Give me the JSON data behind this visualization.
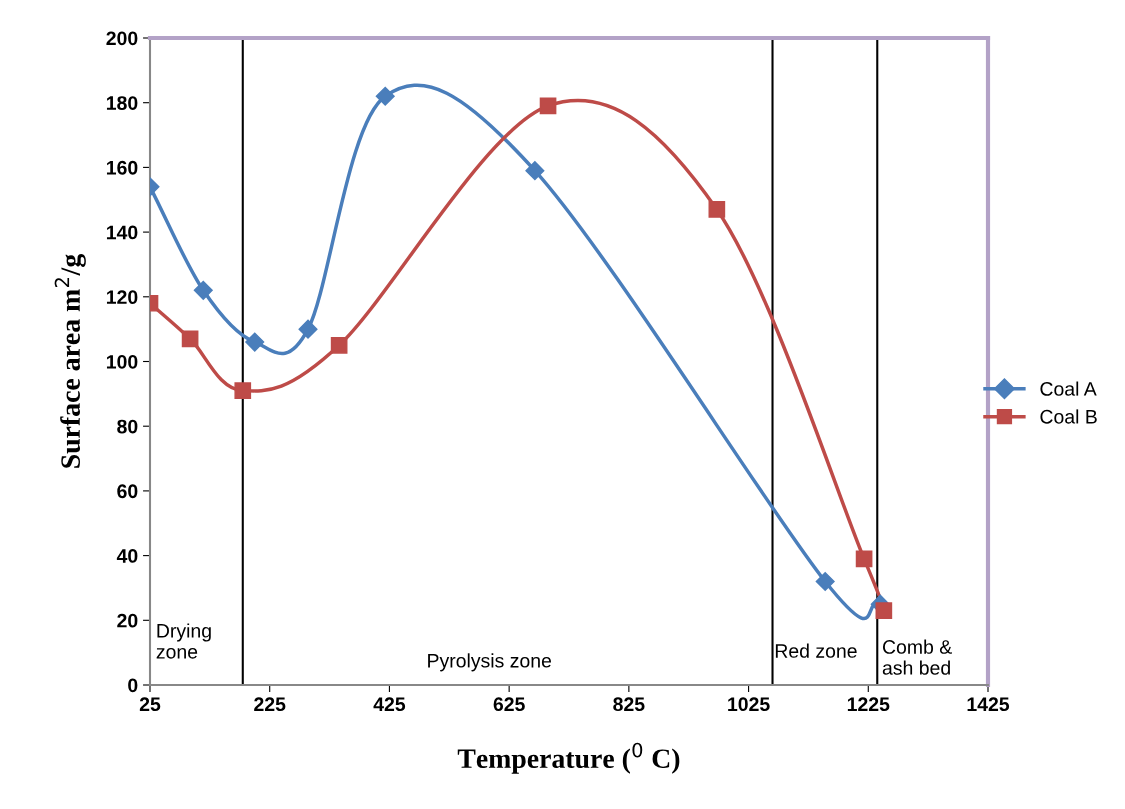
{
  "chart_data": {
    "type": "line",
    "xlabel": "Temperature ($^{0}$ C)",
    "ylabel": "Surface area m$^{2}$/g",
    "xlim": [
      25,
      1425
    ],
    "xticks": [
      25,
      225,
      425,
      625,
      825,
      1025,
      1225,
      1425
    ],
    "ylim": [
      0,
      200
    ],
    "yticks": [
      0,
      20,
      40,
      60,
      80,
      100,
      120,
      140,
      160,
      180,
      200
    ],
    "grid": false,
    "legend": "right",
    "line_style": "solid",
    "series": [
      {
        "name": "Coal A",
        "color": "#4a7ebb",
        "marker": "diamond",
        "x": [
          25,
          114,
          200,
          289,
          418,
          668,
          1153,
          1245
        ],
        "values": [
          154,
          122,
          106,
          110,
          182,
          159,
          32,
          25
        ]
      },
      {
        "name": "Coal B",
        "color": "#be4b48",
        "marker": "square",
        "x": [
          25,
          92,
          180,
          341,
          690,
          972,
          1218,
          1251
        ],
        "values": [
          118,
          107,
          91,
          105,
          179,
          147,
          39,
          23
        ]
      }
    ],
    "ref_lines": [
      {
        "axis": "x",
        "value": 180,
        "color": "#000000"
      },
      {
        "axis": "x",
        "value": 1065,
        "color": "#000000"
      },
      {
        "axis": "x",
        "value": 1240,
        "color": "#000000"
      }
    ],
    "annotations": [
      "Drying\nzone",
      "Pyrolysis zone",
      "Red zone",
      "Comb &\nash bed"
    ]
  }
}
